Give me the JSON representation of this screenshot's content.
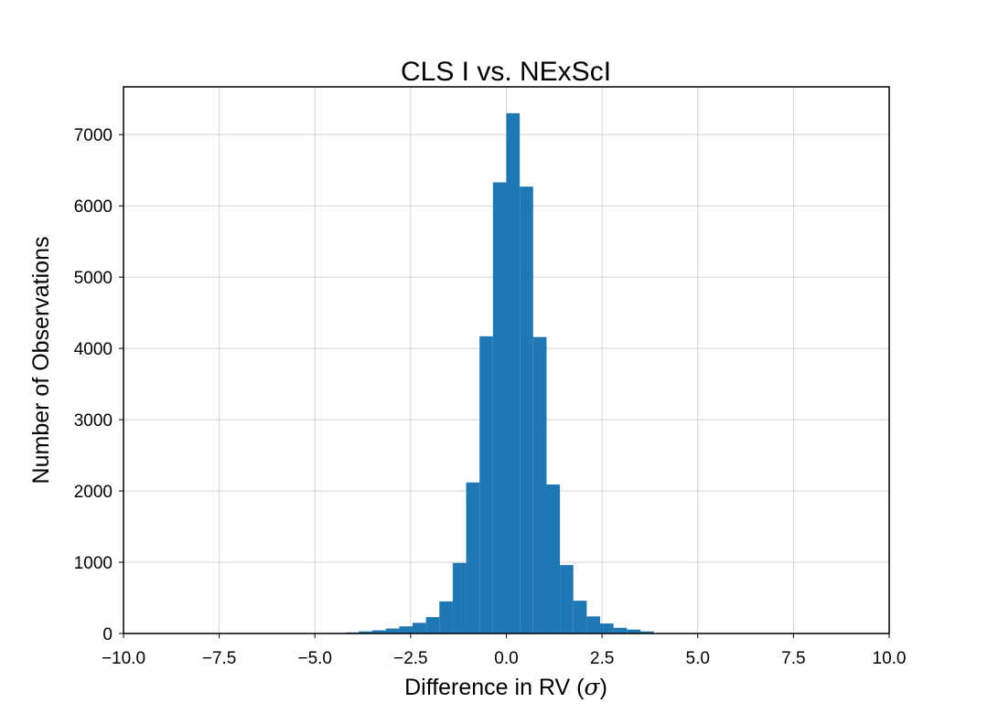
{
  "chart_data": {
    "type": "bar",
    "title": "CLS I vs. NExScI",
    "xlabel": {
      "prefix": "Difference in RV (",
      "symbol": "σ",
      "suffix": ")"
    },
    "ylabel": "Number of Observations",
    "xlim": [
      -10.0,
      10.0
    ],
    "ylim": [
      0,
      7670
    ],
    "xticks": [
      -10.0,
      -7.5,
      -5.0,
      -2.5,
      0.0,
      2.5,
      5.0,
      7.5,
      10.0
    ],
    "xtick_labels": [
      "−10.0",
      "−7.5",
      "−5.0",
      "−2.5",
      "0.0",
      "2.5",
      "5.0",
      "7.5",
      "10.0"
    ],
    "yticks": [
      0,
      1000,
      2000,
      3000,
      4000,
      5000,
      6000,
      7000
    ],
    "ytick_labels": [
      "0",
      "1000",
      "2000",
      "3000",
      "4000",
      "5000",
      "6000",
      "7000"
    ],
    "grid": true,
    "bar_color": "#1f77b4",
    "bin_edges": [
      -4.2,
      -3.85,
      -3.5,
      -3.15,
      -2.8,
      -2.45,
      -2.1,
      -1.75,
      -1.4,
      -1.05,
      -0.7,
      -0.35,
      0.0,
      0.35,
      0.7,
      1.05,
      1.4,
      1.75,
      2.1,
      2.45,
      2.8,
      3.15,
      3.5,
      3.85
    ],
    "counts": [
      15,
      30,
      45,
      70,
      100,
      150,
      230,
      450,
      990,
      2120,
      4170,
      6330,
      7300,
      6270,
      4160,
      2090,
      960,
      460,
      240,
      140,
      80,
      55,
      30
    ]
  }
}
